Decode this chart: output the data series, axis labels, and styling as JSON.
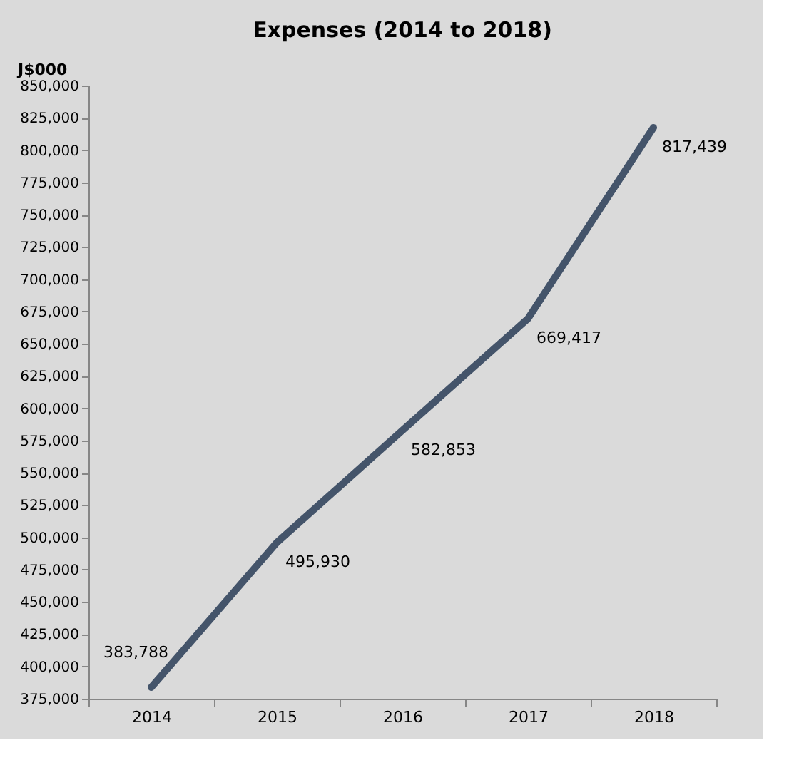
{
  "chart_data": {
    "type": "line",
    "title": "Expenses (2014 to 2018)",
    "ylabel": "J$000",
    "categories": [
      "2014",
      "2015",
      "2016",
      "2017",
      "2018"
    ],
    "series": [
      {
        "color": "#44546a",
        "values": [
          383788,
          495930,
          582853,
          669417,
          817439
        ],
        "value_labels": [
          "383,788",
          "495,930",
          "582,853",
          "669,417",
          "817,439"
        ]
      }
    ],
    "ylim": [
      375000,
      850000
    ],
    "yticks": [
      {
        "value": 375000,
        "label": "375,000"
      },
      {
        "value": 400000,
        "label": "400,000"
      },
      {
        "value": 425000,
        "label": "425,000"
      },
      {
        "value": 450000,
        "label": "450,000"
      },
      {
        "value": 475000,
        "label": "475,000"
      },
      {
        "value": 500000,
        "label": "500,000"
      },
      {
        "value": 525000,
        "label": "525,000"
      },
      {
        "value": 550000,
        "label": "550,000"
      },
      {
        "value": 575000,
        "label": "575,000"
      },
      {
        "value": 600000,
        "label": "600,000"
      },
      {
        "value": 625000,
        "label": "625,000"
      },
      {
        "value": 650000,
        "label": "650,000"
      },
      {
        "value": 675000,
        "label": "675,000"
      },
      {
        "value": 700000,
        "label": "700,000"
      },
      {
        "value": 725000,
        "label": "725,000"
      },
      {
        "value": 750000,
        "label": "750,000"
      },
      {
        "value": 775000,
        "label": "775,000"
      },
      {
        "value": 800000,
        "label": "800,000"
      },
      {
        "value": 825000,
        "label": "825,000"
      },
      {
        "value": 850000,
        "label": "850,000"
      }
    ],
    "marker": "none",
    "line_style": "solid"
  }
}
